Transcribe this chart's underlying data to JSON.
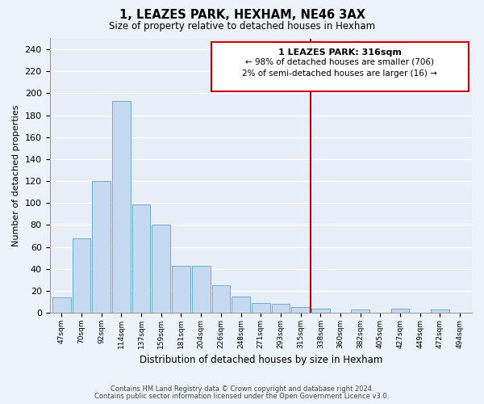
{
  "title": "1, LEAZES PARK, HEXHAM, NE46 3AX",
  "subtitle": "Size of property relative to detached houses in Hexham",
  "xlabel": "Distribution of detached houses by size in Hexham",
  "ylabel": "Number of detached properties",
  "bin_labels": [
    "47sqm",
    "70sqm",
    "92sqm",
    "114sqm",
    "137sqm",
    "159sqm",
    "181sqm",
    "204sqm",
    "226sqm",
    "248sqm",
    "271sqm",
    "293sqm",
    "315sqm",
    "338sqm",
    "360sqm",
    "382sqm",
    "405sqm",
    "427sqm",
    "449sqm",
    "472sqm",
    "494sqm"
  ],
  "bar_heights": [
    14,
    68,
    120,
    193,
    99,
    80,
    43,
    43,
    25,
    15,
    9,
    8,
    5,
    4,
    0,
    3,
    0,
    4,
    0,
    3,
    0
  ],
  "bar_color": "#c5d9f0",
  "bar_edge_color": "#6baed6",
  "vline_color": "#cc0000",
  "vline_x": 12,
  "annotation_title": "1 LEAZES PARK: 316sqm",
  "annotation_line1": "← 98% of detached houses are smaller (706)",
  "annotation_line2": "2% of semi-detached houses are larger (16) →",
  "annotation_box_color": "#ffffff",
  "annotation_box_edge": "#cc0000",
  "footer1": "Contains HM Land Registry data © Crown copyright and database right 2024.",
  "footer2": "Contains public sector information licensed under the Open Government Licence v3.0.",
  "ylim": [
    0,
    250
  ],
  "yticks": [
    0,
    20,
    40,
    60,
    80,
    100,
    120,
    140,
    160,
    180,
    200,
    220,
    240
  ],
  "background_color": "#eef2fa",
  "grid_color": "#d8e0ee",
  "plot_bg_color": "#e8eef8"
}
